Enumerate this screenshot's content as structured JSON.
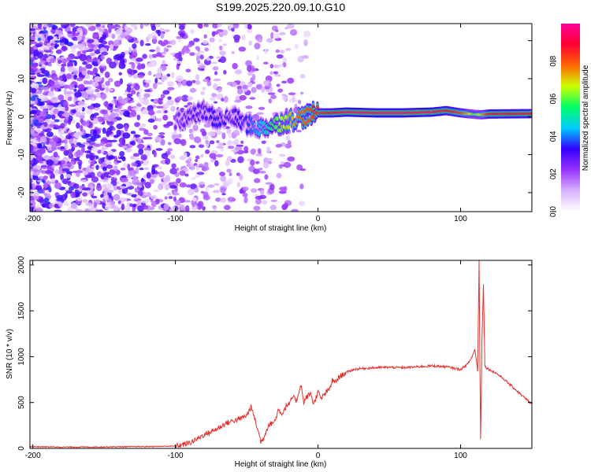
{
  "title": "S199.2025.220.09.10.G10",
  "chart_data": [
    {
      "type": "heatmap",
      "xlabel": "Height of straight line (km)",
      "ylabel": "Frequency (Hz)",
      "xlim": [
        -202,
        150
      ],
      "ylim": [
        -25,
        24.5
      ],
      "x_ticks": [
        -200,
        -100,
        0,
        100
      ],
      "y_ticks": [
        -20,
        -10,
        0,
        10,
        20
      ],
      "colorbar": {
        "label": "Normalized spectral amplitude",
        "range": [
          0,
          1
        ],
        "ticks": [
          0.0,
          0.2,
          0.4,
          0.6,
          0.8
        ],
        "tick_labels": [
          "0.0",
          "0.2",
          "0.4",
          "0.6",
          "0.8"
        ],
        "colors": [
          "#ffffff",
          "#d9b3ff",
          "#9933ff",
          "#3300ff",
          "#00ccff",
          "#00ff66",
          "#ccff00",
          "#ff6600",
          "#ff0033",
          "#ff0099"
        ]
      },
      "ridge": {
        "x": [
          -100,
          -90,
          -80,
          -70,
          -60,
          -50,
          -40,
          -35,
          -30,
          -20,
          -10,
          0,
          10,
          20,
          40,
          60,
          80,
          90,
          100,
          110,
          115,
          120,
          150
        ],
        "freq": [
          -1.0,
          0.0,
          1.5,
          -1.0,
          0.0,
          -2.0,
          -3.0,
          -2.5,
          -2.0,
          -1.0,
          0.0,
          1.0,
          1.0,
          1.2,
          1.0,
          1.0,
          1.2,
          1.6,
          1.0,
          0.6,
          0.5,
          0.7,
          0.8
        ],
        "amplitude": [
          0.25,
          0.3,
          0.3,
          0.35,
          0.3,
          0.35,
          0.45,
          0.5,
          0.6,
          0.7,
          0.8,
          0.85,
          0.9,
          0.95,
          0.95,
          0.95,
          0.95,
          0.9,
          0.85,
          0.6,
          0.7,
          0.9,
          0.9
        ]
      }
    },
    {
      "type": "line",
      "xlabel": "Height of straight line (km)",
      "ylabel": "SNR (10 * v/v)",
      "xlim": [
        -202,
        150
      ],
      "ylim": [
        0,
        2050
      ],
      "x_ticks": [
        -200,
        -100,
        0,
        100
      ],
      "y_ticks": [
        0,
        500,
        1000,
        1500,
        2000
      ],
      "color": "#e8302c",
      "series": [
        {
          "x": [
            -202,
            -180,
            -160,
            -140,
            -120,
            -100,
            -95,
            -90,
            -85,
            -80,
            -75,
            -70,
            -65,
            -60,
            -55,
            -50,
            -47,
            -45,
            -43,
            -40,
            -38,
            -35,
            -30,
            -28,
            -25,
            -22,
            -20,
            -18,
            -15,
            -12,
            -10,
            -8,
            -5,
            -3,
            0,
            2,
            5,
            8,
            10,
            12,
            15,
            20,
            25,
            30,
            40,
            50,
            60,
            70,
            80,
            90,
            100,
            105,
            108,
            110,
            112,
            113,
            114,
            115,
            116,
            117,
            118,
            120,
            125,
            130,
            135,
            140,
            145,
            150
          ],
          "y": [
            20,
            15,
            15,
            18,
            20,
            25,
            40,
            60,
            100,
            150,
            180,
            220,
            270,
            300,
            320,
            360,
            450,
            360,
            250,
            70,
            120,
            250,
            300,
            420,
            380,
            470,
            480,
            560,
            520,
            700,
            500,
            560,
            600,
            480,
            620,
            540,
            600,
            640,
            740,
            720,
            780,
            830,
            860,
            870,
            880,
            885,
            880,
            890,
            900,
            890,
            860,
            920,
            1000,
            1080,
            850,
            2050,
            100,
            1200,
            1800,
            900,
            880,
            860,
            820,
            760,
            690,
            620,
            550,
            480
          ]
        }
      ]
    }
  ]
}
